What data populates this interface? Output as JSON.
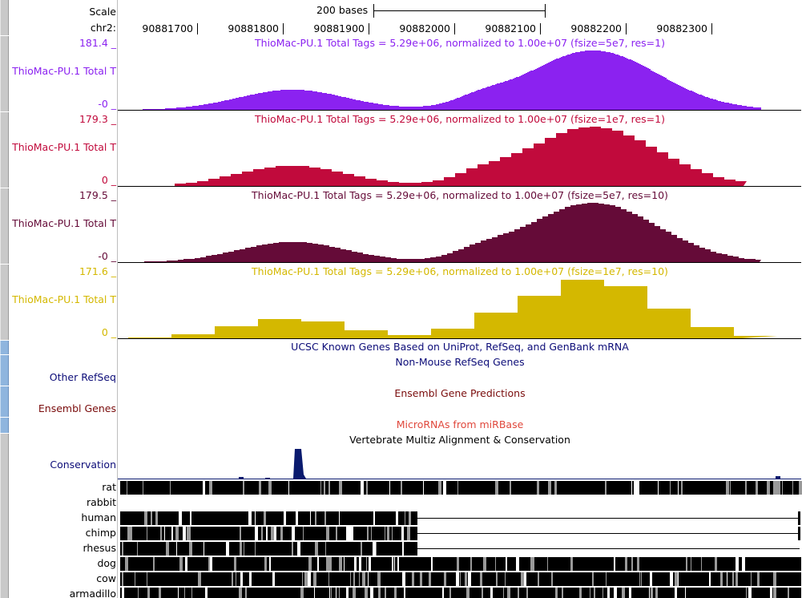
{
  "ruler": {
    "scale_label": "Scale",
    "scale_text": "200 bases",
    "chrom_label": "chr2:",
    "ticks": [
      "90881700",
      "90881800",
      "90881900",
      "90882000",
      "90882100",
      "90882200",
      "90882300"
    ]
  },
  "tracks": [
    {
      "label": "ThioMac-PU.1 Total T",
      "title": "ThioMac-PU.1 Total Tags = 5.29e+06, normalized to 1.00e+07 (fsize=5e7, res=1)",
      "max": "181.4 _",
      "min": "-0 _",
      "color": "#8b22f0"
    },
    {
      "label": "ThioMac-PU.1 Total T",
      "title": "ThioMac-PU.1 Total Tags = 5.29e+06, normalized to 1.00e+07 (fsize=1e7, res=1)",
      "max": "179.3 _",
      "min": "0 _",
      "color": "#c10a3c"
    },
    {
      "label": "ThioMac-PU.1 Total T",
      "title": "ThioMac-PU.1 Total Tags = 5.29e+06, normalized to 1.00e+07 (fsize=5e7, res=10)",
      "max": "179.5 _",
      "min": "-0 _",
      "color": "#650b38"
    },
    {
      "label": "ThioMac-PU.1 Total T",
      "title": "ThioMac-PU.1 Total Tags = 5.29e+06, normalized to 1.00e+07 (fsize=1e7, res=10)",
      "max": "171.6 _",
      "min": "0 _",
      "color": "#d4b800"
    }
  ],
  "gene_tracks": {
    "ucsc_title": "UCSC Known Genes Based on UniProt, RefSeq, and GenBank mRNA",
    "refseq_title": "Non-Mouse RefSeq Genes",
    "refseq_label": "Other RefSeq",
    "ensembl_title": "Ensembl Gene Predictions",
    "ensembl_label": "Ensembl Genes",
    "mirna_title": "MicroRNAs from miRBase",
    "multiz_title": "Vertebrate Multiz Alignment & Conservation",
    "cons_label": "Conservation"
  },
  "species": [
    "rat",
    "rabbit",
    "human",
    "chimp",
    "rhesus",
    "dog",
    "cow",
    "armadillo"
  ],
  "colors": {
    "ucsc": "#0c0c78",
    "refseq": "#0c0c78",
    "ensembl": "#7a0c0c",
    "mirna": "#e0483c",
    "multiz": "#000000",
    "cons": "#0c0c78",
    "conservation_peak": "#0a1a6e"
  }
}
